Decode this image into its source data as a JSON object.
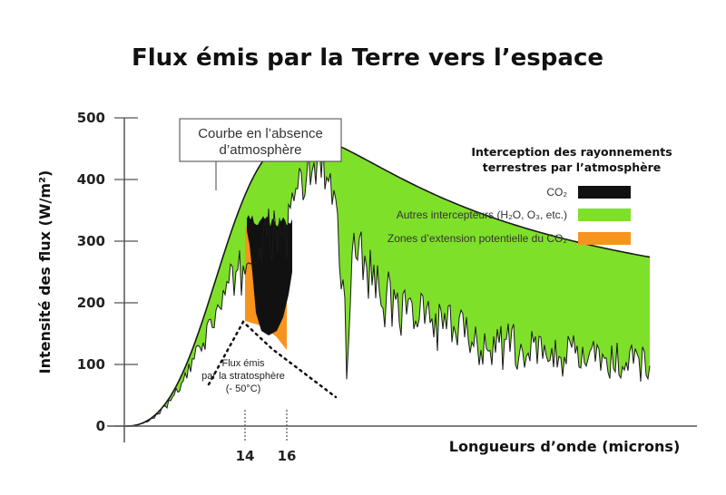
{
  "chart_data": {
    "type": "area",
    "title": "Flux émis par la Terre vers l’espace",
    "ylabel": "Intensité des flux (W/m²)",
    "xlabel": "Longueurs d’onde (microns)",
    "ylim": [
      0,
      500
    ],
    "y_ticks": [
      {
        "value": 0,
        "label": "0"
      },
      {
        "value": 100,
        "label": "100"
      },
      {
        "value": 200,
        "label": "200"
      },
      {
        "value": 300,
        "label": "300"
      },
      {
        "value": 400,
        "label": "400"
      },
      {
        "value": 500,
        "label": "500"
      }
    ],
    "x_ticks": [
      {
        "value": 14,
        "label": "14"
      },
      {
        "value": 16,
        "label": "16"
      }
    ],
    "annotations": {
      "no_atmosphere_l1": "Courbe en l’absence",
      "no_atmosphere_l2": "d’atmosphère",
      "strat_l1": "Flux émis",
      "strat_l2": "par la stratosphère",
      "strat_l3": "(- 50°C)"
    },
    "legend": {
      "title_l1": "Interception des rayonnements",
      "title_l2": "terrestres par l’atmosphère",
      "items": [
        {
          "label": "CO₂",
          "color": "#111111"
        },
        {
          "label": "Autres intercepteurs (H₂O, O₃, etc.)",
          "color": "#7fe02a"
        },
        {
          "label": "Zones d’extension potentielle du CO₂",
          "color": "#f7941d"
        }
      ]
    },
    "colors": {
      "co2": "#111111",
      "other": "#7fe02a",
      "co2_potential": "#f7941d",
      "outline": "#1a1a1a"
    }
  }
}
